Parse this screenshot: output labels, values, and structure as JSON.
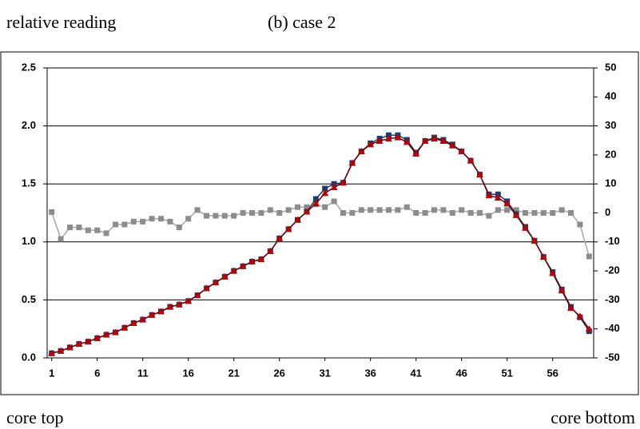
{
  "header": {
    "left": "relative reading",
    "center": "(b) case 2"
  },
  "footer": {
    "left": "core top",
    "right": "core bottom"
  },
  "chart_data": {
    "type": "line",
    "x": [
      1,
      2,
      3,
      4,
      5,
      6,
      7,
      8,
      9,
      10,
      11,
      12,
      13,
      14,
      15,
      16,
      17,
      18,
      19,
      20,
      21,
      22,
      23,
      24,
      25,
      26,
      27,
      28,
      29,
      30,
      31,
      32,
      33,
      34,
      35,
      36,
      37,
      38,
      39,
      40,
      41,
      42,
      43,
      44,
      45,
      46,
      47,
      48,
      49,
      50,
      51,
      52,
      53,
      54,
      55,
      56,
      57,
      58,
      59,
      60
    ],
    "xlim": [
      0.5,
      60.5
    ],
    "xticks": [
      1,
      6,
      11,
      16,
      21,
      26,
      31,
      36,
      41,
      46,
      51,
      56
    ],
    "ylim": [
      0,
      2.5
    ],
    "yticks": [
      {
        "value": 0,
        "label": "0.0"
      },
      {
        "value": 0.5,
        "label": "0.5"
      },
      {
        "value": 1,
        "label": "1.0"
      },
      {
        "value": 1.5,
        "label": "1.5"
      },
      {
        "value": 2,
        "label": "2.0"
      },
      {
        "value": 2.5,
        "label": "2.5"
      }
    ],
    "y2lim": [
      -50,
      50
    ],
    "y2ticks": [
      -50,
      -40,
      -30,
      -20,
      -10,
      0,
      10,
      20,
      30,
      40,
      50
    ],
    "grid": true,
    "series": [
      {
        "color": "#1b3d6e",
        "line_color": "#1b3d6e",
        "marker": "square",
        "values": [
          0.04,
          0.06,
          0.09,
          0.12,
          0.14,
          0.17,
          0.2,
          0.22,
          0.26,
          0.3,
          0.33,
          0.37,
          0.4,
          0.44,
          0.46,
          0.49,
          0.54,
          0.6,
          0.65,
          0.7,
          0.75,
          0.79,
          0.83,
          0.85,
          0.92,
          1.03,
          1.11,
          1.19,
          1.26,
          1.37,
          1.46,
          1.5,
          1.51,
          1.68,
          1.78,
          1.85,
          1.89,
          1.92,
          1.92,
          1.88,
          1.77,
          1.87,
          1.9,
          1.88,
          1.84,
          1.78,
          1.7,
          1.58,
          1.41,
          1.41,
          1.35,
          1.24,
          1.13,
          1.01,
          0.87,
          0.74,
          0.59,
          0.44,
          0.35,
          0.23
        ]
      },
      {
        "color": "#c00000",
        "line_color": "#6b0000",
        "marker": "triangle",
        "values": [
          0.04,
          0.06,
          0.09,
          0.12,
          0.14,
          0.17,
          0.2,
          0.22,
          0.26,
          0.3,
          0.33,
          0.37,
          0.4,
          0.44,
          0.46,
          0.49,
          0.54,
          0.6,
          0.65,
          0.7,
          0.75,
          0.79,
          0.83,
          0.85,
          0.92,
          1.03,
          1.11,
          1.19,
          1.26,
          1.33,
          1.42,
          1.47,
          1.51,
          1.68,
          1.78,
          1.84,
          1.87,
          1.89,
          1.9,
          1.86,
          1.76,
          1.87,
          1.89,
          1.87,
          1.83,
          1.78,
          1.7,
          1.58,
          1.4,
          1.38,
          1.33,
          1.23,
          1.12,
          1.01,
          0.87,
          0.73,
          0.58,
          0.43,
          0.36,
          0.25
        ]
      },
      {
        "color": "#8c8c8c",
        "line_color": "#a6a6a6",
        "marker": "square",
        "axis": "y2",
        "values": [
          0.3,
          -9,
          -5,
          -5,
          -6,
          -6,
          -7,
          -4,
          -4,
          -3,
          -3,
          -2,
          -2,
          -3,
          -5,
          -2,
          1,
          -1,
          -1,
          -1,
          -1,
          0,
          0,
          0,
          1,
          0,
          1,
          2,
          2,
          3,
          2,
          4,
          0,
          0,
          1,
          1,
          1,
          1,
          1,
          2,
          0,
          0,
          1,
          1,
          0,
          1,
          0,
          0,
          -1,
          1,
          1,
          1,
          0,
          0,
          0,
          0,
          1,
          0,
          -4,
          -15
        ]
      }
    ]
  }
}
